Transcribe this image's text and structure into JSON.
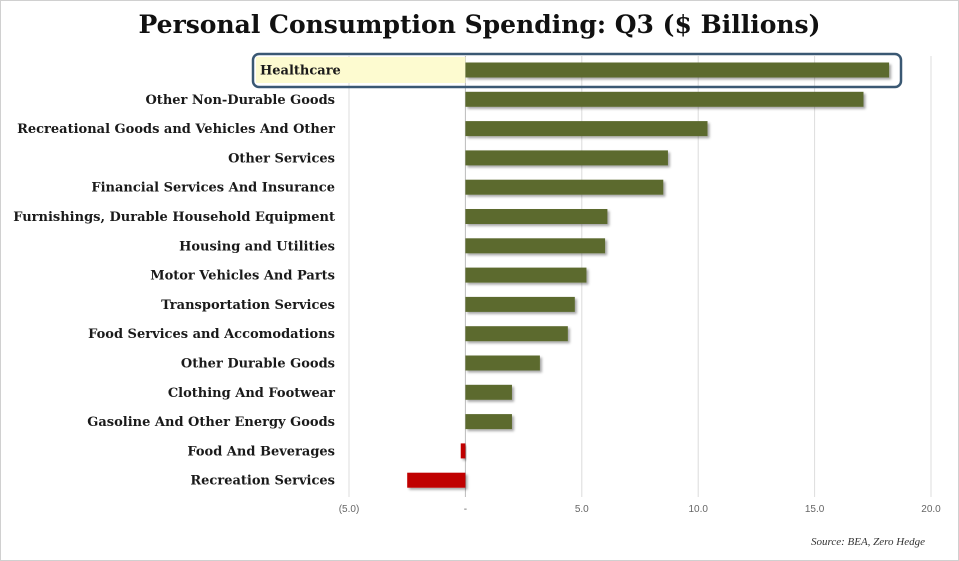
{
  "chart_data": {
    "type": "bar",
    "orientation": "horizontal",
    "title": "Personal Consumption Spending: Q3 ($ Billions)",
    "xlabel": "",
    "ylabel": "",
    "categories": [
      "Healthcare",
      "Other Non-Durable Goods",
      "Recreational Goods and Vehicles And Other",
      "Other Services",
      "Financial Services And Insurance",
      "Furnishings, Durable Household Equipment",
      "Housing and Utilities",
      "Motor Vehicles And Parts",
      "Transportation Services",
      "Food Services and Accomodations",
      "Other Durable Goods",
      "Clothing And Footwear",
      "Gasoline And Other Energy Goods",
      "Food And Beverages",
      "Recreation Services"
    ],
    "values": [
      18.2,
      17.1,
      10.4,
      8.7,
      8.5,
      6.1,
      6.0,
      5.2,
      4.7,
      4.4,
      3.2,
      2.0,
      2.0,
      -0.2,
      -2.5
    ],
    "xlim": [
      -5,
      20
    ],
    "ticks": [
      -5,
      0,
      5,
      10,
      15,
      20
    ],
    "tick_labels": [
      "(5.0)",
      "-",
      "5.0",
      "10.0",
      "15.0",
      "20.0"
    ],
    "grid": "vertical",
    "highlighted_category": "Healthcare",
    "colors": {
      "positive": "#5b6a2e",
      "negative": "#c00000",
      "highlight_fill": "#fdfbd0",
      "highlight_border": "#3a5873",
      "grid": "#dcdcdc"
    },
    "source": "Source: BEA, Zero Hedge"
  }
}
